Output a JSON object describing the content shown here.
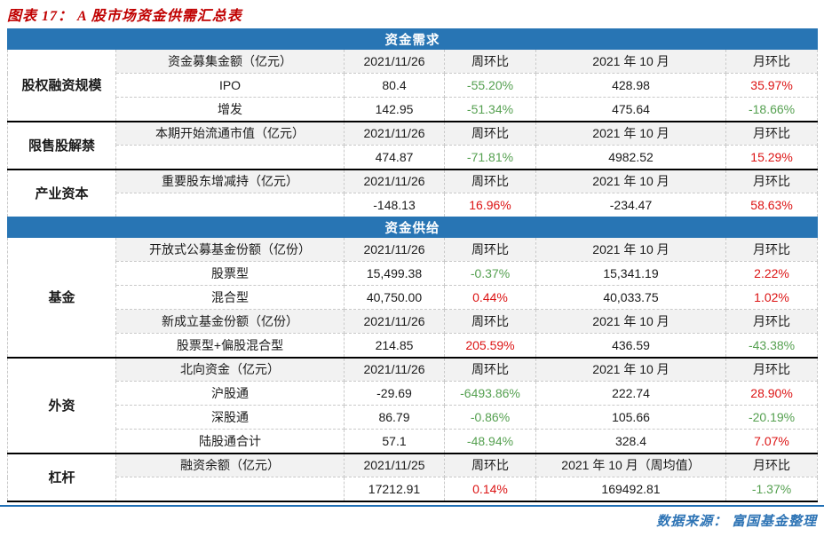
{
  "title": "图表 17： A 股市场资金供需汇总表",
  "footer": {
    "label": "数据来源：",
    "source": "富国基金整理"
  },
  "colors": {
    "band_blue": "#2875B4",
    "shade_gray": "#F2F2F2",
    "positive_red": "#DC1414",
    "negative_green": "#55A050",
    "title_red": "#C00000",
    "rule_blue": "#1F6FB5"
  },
  "table": {
    "bands": [
      {
        "title": "资金需求",
        "groups": [
          {
            "label": "股权融资规模",
            "rows": [
              {
                "shade": true,
                "cells": [
                  {
                    "t": "资金募集金额（亿元）"
                  },
                  {
                    "t": "2021/11/26"
                  },
                  {
                    "t": "周环比"
                  },
                  {
                    "t": "2021 年 10 月"
                  },
                  {
                    "t": "月环比"
                  }
                ]
              },
              {
                "shade": false,
                "cells": [
                  {
                    "t": "IPO"
                  },
                  {
                    "t": "80.4"
                  },
                  {
                    "t": "-55.20%",
                    "c": "green"
                  },
                  {
                    "t": "428.98"
                  },
                  {
                    "t": "35.97%",
                    "c": "red"
                  }
                ]
              },
              {
                "shade": false,
                "cells": [
                  {
                    "t": "增发"
                  },
                  {
                    "t": "142.95"
                  },
                  {
                    "t": "-51.34%",
                    "c": "green"
                  },
                  {
                    "t": "475.64"
                  },
                  {
                    "t": "-18.66%",
                    "c": "green"
                  }
                ]
              }
            ]
          },
          {
            "label": "限售股解禁",
            "rows": [
              {
                "shade": true,
                "cells": [
                  {
                    "t": "本期开始流通市值（亿元）"
                  },
                  {
                    "t": "2021/11/26"
                  },
                  {
                    "t": "周环比"
                  },
                  {
                    "t": "2021 年 10 月"
                  },
                  {
                    "t": "月环比"
                  }
                ]
              },
              {
                "shade": false,
                "cells": [
                  {
                    "t": ""
                  },
                  {
                    "t": "474.87"
                  },
                  {
                    "t": "-71.81%",
                    "c": "green"
                  },
                  {
                    "t": "4982.52"
                  },
                  {
                    "t": "15.29%",
                    "c": "red"
                  }
                ]
              }
            ]
          },
          {
            "label": "产业资本",
            "rows": [
              {
                "shade": true,
                "cells": [
                  {
                    "t": "重要股东增减持（亿元）"
                  },
                  {
                    "t": "2021/11/26"
                  },
                  {
                    "t": "周环比"
                  },
                  {
                    "t": "2021 年 10 月"
                  },
                  {
                    "t": "月环比"
                  }
                ]
              },
              {
                "shade": false,
                "cells": [
                  {
                    "t": ""
                  },
                  {
                    "t": "-148.13"
                  },
                  {
                    "t": "16.96%",
                    "c": "red"
                  },
                  {
                    "t": "-234.47"
                  },
                  {
                    "t": "58.63%",
                    "c": "red"
                  }
                ]
              }
            ]
          }
        ]
      },
      {
        "title": "资金供给",
        "groups": [
          {
            "label": "基金",
            "rows": [
              {
                "shade": true,
                "cells": [
                  {
                    "t": "开放式公募基金份额（亿份）"
                  },
                  {
                    "t": "2021/11/26"
                  },
                  {
                    "t": "周环比"
                  },
                  {
                    "t": "2021 年 10 月"
                  },
                  {
                    "t": "月环比"
                  }
                ]
              },
              {
                "shade": false,
                "cells": [
                  {
                    "t": "股票型"
                  },
                  {
                    "t": "15,499.38"
                  },
                  {
                    "t": "-0.37%",
                    "c": "green"
                  },
                  {
                    "t": "15,341.19"
                  },
                  {
                    "t": "2.22%",
                    "c": "red"
                  }
                ]
              },
              {
                "shade": false,
                "cells": [
                  {
                    "t": "混合型"
                  },
                  {
                    "t": "40,750.00"
                  },
                  {
                    "t": "0.44%",
                    "c": "red"
                  },
                  {
                    "t": "40,033.75"
                  },
                  {
                    "t": "1.02%",
                    "c": "red"
                  }
                ]
              },
              {
                "shade": true,
                "cells": [
                  {
                    "t": "新成立基金份额（亿份）"
                  },
                  {
                    "t": "2021/11/26"
                  },
                  {
                    "t": "周环比"
                  },
                  {
                    "t": "2021 年 10 月"
                  },
                  {
                    "t": "月环比"
                  }
                ]
              },
              {
                "shade": false,
                "cells": [
                  {
                    "t": "股票型+偏股混合型"
                  },
                  {
                    "t": "214.85"
                  },
                  {
                    "t": "205.59%",
                    "c": "red"
                  },
                  {
                    "t": "436.59"
                  },
                  {
                    "t": "-43.38%",
                    "c": "green"
                  }
                ]
              }
            ]
          },
          {
            "label": "外资",
            "rows": [
              {
                "shade": true,
                "cells": [
                  {
                    "t": "北向资金（亿元）"
                  },
                  {
                    "t": "2021/11/26"
                  },
                  {
                    "t": "周环比"
                  },
                  {
                    "t": "2021 年 10 月"
                  },
                  {
                    "t": "月环比"
                  }
                ]
              },
              {
                "shade": false,
                "cells": [
                  {
                    "t": "沪股通"
                  },
                  {
                    "t": "-29.69"
                  },
                  {
                    "t": "-6493.86%",
                    "c": "green"
                  },
                  {
                    "t": "222.74"
                  },
                  {
                    "t": "28.90%",
                    "c": "red"
                  }
                ]
              },
              {
                "shade": false,
                "cells": [
                  {
                    "t": "深股通"
                  },
                  {
                    "t": "86.79"
                  },
                  {
                    "t": "-0.86%",
                    "c": "green"
                  },
                  {
                    "t": "105.66"
                  },
                  {
                    "t": "-20.19%",
                    "c": "green"
                  }
                ]
              },
              {
                "shade": false,
                "cells": [
                  {
                    "t": "陆股通合计"
                  },
                  {
                    "t": "57.1"
                  },
                  {
                    "t": "-48.94%",
                    "c": "green"
                  },
                  {
                    "t": "328.4"
                  },
                  {
                    "t": "7.07%",
                    "c": "red"
                  }
                ]
              }
            ]
          },
          {
            "label": "杠杆",
            "rows": [
              {
                "shade": true,
                "cells": [
                  {
                    "t": "融资余额（亿元）"
                  },
                  {
                    "t": "2021/11/25"
                  },
                  {
                    "t": "周环比"
                  },
                  {
                    "t": "2021 年 10 月（周均值）"
                  },
                  {
                    "t": "月环比"
                  }
                ]
              },
              {
                "shade": false,
                "cells": [
                  {
                    "t": ""
                  },
                  {
                    "t": "17212.91"
                  },
                  {
                    "t": "0.14%",
                    "c": "red"
                  },
                  {
                    "t": "169492.81"
                  },
                  {
                    "t": "-1.37%",
                    "c": "green"
                  }
                ]
              }
            ]
          }
        ]
      }
    ]
  }
}
